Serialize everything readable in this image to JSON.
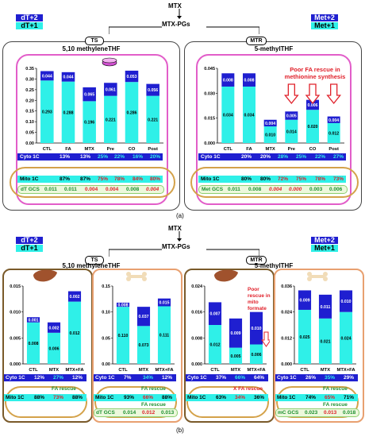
{
  "top": {
    "mtx": "MTX",
    "mtxpg": "MTX-PGs",
    "legend_left": [
      "dT+2",
      "dT+1"
    ],
    "legend_right": [
      "Met+2",
      "Met+1"
    ],
    "ts": "TS",
    "mtr": "MTR",
    "left_title": "5,10 methyleneTHF",
    "right_title": "5-methylTHF",
    "caption": "(a)",
    "right_note": "Poor FA rescue in methionine synthesis",
    "left_bars": {
      "categories": [
        "CTL",
        "FA",
        "MTX",
        "Pre",
        "CO",
        "Post"
      ],
      "top": [
        "0.044",
        "0.044",
        "0.065",
        "0.061",
        "0.053",
        "0.056"
      ],
      "bottom": [
        "0.293",
        "0.288",
        "0.196",
        "0.221",
        "0.286",
        "0.221"
      ],
      "totals": [
        0.337,
        0.332,
        0.261,
        0.282,
        0.339,
        0.277
      ],
      "ylim": [
        0,
        0.35
      ],
      "ticks": [
        "0.00",
        "0.05",
        "0.10",
        "0.15",
        "0.20",
        "0.25",
        "0.30",
        "0.35"
      ]
    },
    "right_bars": {
      "categories": [
        "CTL",
        "FA",
        "MTX",
        "Pre",
        "CO",
        "Post"
      ],
      "top": [
        "0.008",
        "0.008",
        "0.004",
        "0.005",
        "0.006",
        "0.004"
      ],
      "bottom": [
        "0.034",
        "0.034",
        "0.010",
        "0.014",
        "0.020",
        "0.012"
      ],
      "totals": [
        0.042,
        0.042,
        0.014,
        0.019,
        0.026,
        0.016
      ],
      "ylim": [
        0,
        0.045
      ],
      "ticks": [
        "0.000",
        "0.015",
        "0.030",
        "0.045"
      ]
    },
    "left_cyto": {
      "label": "Cyto 1C",
      "values": [
        "13%",
        "13%",
        "25%",
        "22%",
        "16%",
        "20%"
      ]
    },
    "left_mito": {
      "label": "Mito 1C",
      "values": [
        "87%",
        "87%",
        "75%",
        "78%",
        "84%",
        "80%"
      ]
    },
    "left_gcs": {
      "label": "dT GCS",
      "values": [
        "0.011",
        "0.011",
        "0.004",
        "0.004",
        "0.008",
        "0.004"
      ]
    },
    "right_cyto": {
      "label": "Cyto 1C",
      "values": [
        "20%",
        "20%",
        "28%",
        "25%",
        "22%",
        "27%"
      ]
    },
    "right_mito": {
      "label": "Mito 1C",
      "values": [
        "80%",
        "80%",
        "72%",
        "75%",
        "78%",
        "73%"
      ]
    },
    "right_gcs": {
      "label": "Met GCS",
      "values": [
        "0.011",
        "0.008",
        "0.004",
        "0.000",
        "0.003",
        "0.006"
      ]
    }
  },
  "bottom": {
    "mtx": "MTX",
    "mtxpg": "MTX-PGs",
    "legend_left": [
      "dT+2",
      "dT+1"
    ],
    "legend_right": [
      "Met+2",
      "Met+1"
    ],
    "ts": "TS",
    "mtr": "MTR",
    "left_title": "5,10 methyleneTHF",
    "right_title": "5-methylTHF",
    "caption": "(b)",
    "poor_note": "Poor rescue in mito formate",
    "fa_rescue": "FA rescue",
    "x_fa_rescue": "X FA rescue",
    "panels": [
      {
        "categories": [
          "CTL",
          "MTX",
          "MTX+FA"
        ],
        "top": [
          "0.001",
          "0.002",
          "0.002"
        ],
        "bottom": [
          "0.008",
          "0.006",
          "0.012"
        ],
        "totals": [
          0.009,
          0.008,
          0.014
        ],
        "ylim": [
          0,
          0.015
        ],
        "ticks": [
          "0.000",
          "0.005",
          "0.010",
          "0.015"
        ],
        "cyto": {
          "label": "Cyto 1C",
          "values": [
            "12%",
            "27%",
            "12%"
          ]
        },
        "mito": {
          "label": "Mito 1C",
          "values": [
            "88%",
            "73%",
            "88%"
          ]
        },
        "gcs": null
      },
      {
        "categories": [
          "CTL",
          "MTX",
          "MTX+FA"
        ],
        "top": [
          "0.008",
          "0.037",
          "0.015"
        ],
        "bottom": [
          "0.110",
          "0.073",
          "0.111"
        ],
        "totals": [
          0.118,
          0.11,
          0.126
        ],
        "ylim": [
          0,
          0.15
        ],
        "ticks": [
          "0.00",
          "0.05",
          "0.10",
          "0.15"
        ],
        "cyto": {
          "label": "Cyto 1C",
          "values": [
            "7%",
            "34%",
            "12%"
          ]
        },
        "mito": {
          "label": "Mito 1C",
          "values": [
            "93%",
            "66%",
            "88%"
          ]
        },
        "gcs": {
          "label": "dT GCS",
          "values": [
            "0.014",
            "0.012",
            "0.013"
          ]
        }
      },
      {
        "categories": [
          "CTL",
          "MTX",
          "MTX+FA"
        ],
        "top": [
          "0.007",
          "0.009",
          "0.010"
        ],
        "bottom": [
          "0.012",
          "0.005",
          "0.006"
        ],
        "totals": [
          0.019,
          0.014,
          0.016
        ],
        "ylim": [
          0,
          0.024
        ],
        "ticks": [
          "0.000",
          "0.008",
          "0.016",
          "0.024"
        ],
        "cyto": {
          "label": "Cyto 1C",
          "values": [
            "37%",
            "66%",
            "64%"
          ]
        },
        "mito": {
          "label": "Mito 1C",
          "values": [
            "63%",
            "34%",
            "36%"
          ]
        },
        "gcs": null
      },
      {
        "categories": [
          "CTL",
          "MTX",
          "MTX+FA"
        ],
        "top": [
          "0.009",
          "0.011",
          "0.010"
        ],
        "bottom": [
          "0.025",
          "0.021",
          "0.024"
        ],
        "totals": [
          0.034,
          0.032,
          0.034
        ],
        "ylim": [
          0,
          0.036
        ],
        "ticks": [
          "0.000",
          "0.012",
          "0.024",
          "0.036"
        ],
        "cyto": {
          "label": "Cyto 1C",
          "values": [
            "26%",
            "35%",
            "29%"
          ]
        },
        "mito": {
          "label": "Mito 1C",
          "values": [
            "74%",
            "65%",
            "71%"
          ]
        },
        "gcs": {
          "label": "mC GCS",
          "values": [
            "0.023",
            "0.013",
            "0.018"
          ]
        }
      }
    ]
  },
  "colors": {
    "dark": "#1f1fd0",
    "cyan": "#2ff0e8",
    "pink": "#e25ec9",
    "brown": "#7a5a2a",
    "tan": "#e8a070",
    "green": "#1b8f2f",
    "red": "#e0202a",
    "cytoband": "#1f1fd0",
    "mitoband": "#2ff0e8"
  },
  "chart_data": [
    {
      "type": "bar",
      "stacked": true,
      "categories": [
        "CTL",
        "FA",
        "MTX",
        "Pre",
        "CO",
        "Post"
      ],
      "series": [
        {
          "name": "dT+1",
          "values": [
            0.293,
            0.288,
            0.196,
            0.221,
            0.286,
            0.221
          ]
        },
        {
          "name": "dT+2",
          "values": [
            0.044,
            0.044,
            0.065,
            0.061,
            0.053,
            0.056
          ]
        }
      ],
      "title": "5,10 methyleneTHF",
      "ylim": [
        0,
        0.35
      ]
    },
    {
      "type": "bar",
      "stacked": true,
      "categories": [
        "CTL",
        "FA",
        "MTX",
        "Pre",
        "CO",
        "Post"
      ],
      "series": [
        {
          "name": "Met+1",
          "values": [
            0.034,
            0.034,
            0.01,
            0.014,
            0.02,
            0.012
          ]
        },
        {
          "name": "Met+2",
          "values": [
            0.008,
            0.008,
            0.004,
            0.005,
            0.006,
            0.004
          ]
        }
      ],
      "title": "5-methylTHF",
      "ylim": [
        0,
        0.045
      ]
    }
  ]
}
